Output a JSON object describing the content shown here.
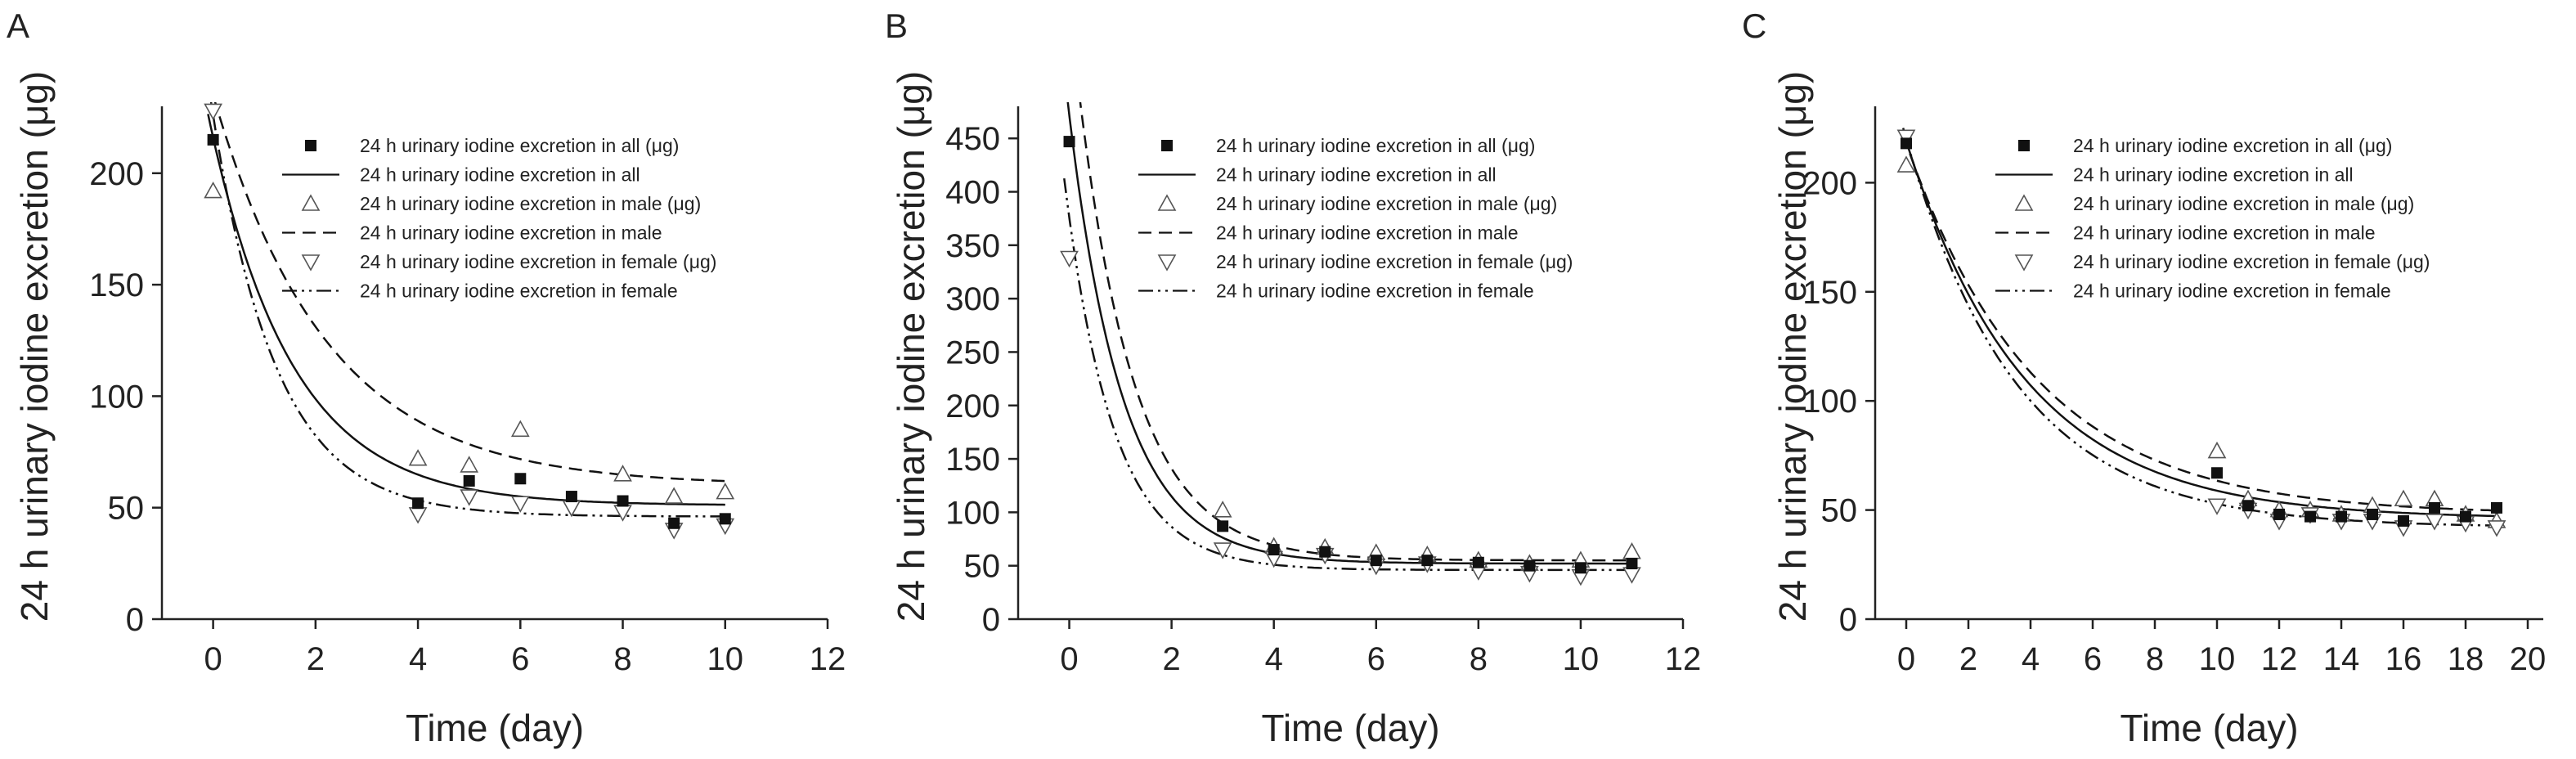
{
  "chart_data": [
    {
      "panel": "A",
      "type": "scatter",
      "xlabel": "Time (day)",
      "ylabel": "24 h urinary iodine excretion (μg)",
      "xlim": [
        -1,
        12
      ],
      "ylim": [
        0,
        230
      ],
      "xticks": [
        0,
        2,
        4,
        6,
        8,
        10,
        12
      ],
      "yticks": [
        0,
        50,
        100,
        150,
        200
      ],
      "legend_position": "top-right",
      "series": [
        {
          "name": "24 h urinary iodine excretion in all (μg)",
          "kind": "points",
          "marker": "square",
          "x": [
            0,
            4,
            5,
            6,
            7,
            8,
            9,
            10
          ],
          "y": [
            215,
            52,
            62,
            63,
            55,
            53,
            43,
            45
          ]
        },
        {
          "name": "24 h urinary iodine excretion in all",
          "kind": "curve",
          "dash": "solid",
          "fit": {
            "a": 165,
            "b": 0.62,
            "c": 51
          }
        },
        {
          "name": "24 h urinary iodine excretion in male (μg)",
          "kind": "points",
          "marker": "triangle-up",
          "x": [
            0,
            4,
            5,
            6,
            8,
            9,
            10
          ],
          "y": [
            192,
            72,
            69,
            85,
            65,
            55,
            57
          ]
        },
        {
          "name": "24 h urinary iodine excretion in male",
          "kind": "curve",
          "dash": "dashed",
          "fit": {
            "a": 175,
            "b": 0.45,
            "c": 60
          }
        },
        {
          "name": "24 h urinary iodine excretion in female (μg)",
          "kind": "points",
          "marker": "triangle-down",
          "x": [
            0,
            4,
            5,
            6,
            7,
            8,
            9,
            10
          ],
          "y": [
            228,
            47,
            55,
            52,
            50,
            48,
            40,
            42
          ]
        },
        {
          "name": "24 h urinary iodine excretion in female",
          "kind": "curve",
          "dash": "dashdotdot",
          "fit": {
            "a": 180,
            "b": 0.8,
            "c": 46
          }
        }
      ]
    },
    {
      "panel": "B",
      "type": "scatter",
      "xlabel": "Time (day)",
      "ylabel": "24 h urinary iodine excretion (μg)",
      "xlim": [
        -1,
        12
      ],
      "ylim": [
        0,
        480
      ],
      "xticks": [
        0,
        2,
        4,
        6,
        8,
        10,
        12
      ],
      "yticks": [
        0,
        50,
        100,
        150,
        200,
        250,
        300,
        350,
        400,
        450
      ],
      "legend_position": "top-right",
      "series": [
        {
          "name": "24 h urinary iodine excretion in all (μg)",
          "kind": "points",
          "marker": "square",
          "x": [
            0,
            3,
            4,
            5,
            6,
            7,
            8,
            9,
            10,
            11
          ],
          "y": [
            447,
            87,
            65,
            63,
            55,
            55,
            53,
            50,
            48,
            52
          ]
        },
        {
          "name": "24 h urinary iodine excretion in all",
          "kind": "curve",
          "dash": "solid",
          "fit": {
            "a": 420,
            "b": 0.95,
            "c": 52
          }
        },
        {
          "name": "24 h urinary iodine excretion in male (μg)",
          "kind": "points",
          "marker": "triangle-up",
          "x": [
            3,
            4,
            5,
            6,
            7,
            8,
            9,
            10,
            11
          ],
          "y": [
            102,
            68,
            67,
            62,
            60,
            55,
            52,
            55,
            63
          ]
        },
        {
          "name": "24 h urinary iodine excretion in male",
          "kind": "curve",
          "dash": "dashed",
          "fit": {
            "a": 520,
            "b": 0.9,
            "c": 55
          }
        },
        {
          "name": "24 h urinary iodine excretion in female (μg)",
          "kind": "points",
          "marker": "triangle-down",
          "x": [
            0,
            3,
            4,
            5,
            6,
            7,
            8,
            9,
            10,
            11
          ],
          "y": [
            338,
            65,
            57,
            60,
            50,
            52,
            45,
            43,
            40,
            42
          ]
        },
        {
          "name": "24 h urinary iodine excretion in female",
          "kind": "curve",
          "dash": "dashdotdot",
          "fit": {
            "a": 330,
            "b": 1.05,
            "c": 46
          }
        }
      ]
    },
    {
      "panel": "C",
      "type": "scatter",
      "xlabel": "Time (day)",
      "ylabel": "24 h urinary iodine excretion (μg)",
      "xlim": [
        -1,
        20.5
      ],
      "ylim": [
        0,
        235
      ],
      "xticks": [
        0,
        2,
        4,
        6,
        8,
        10,
        12,
        14,
        16,
        18,
        20
      ],
      "yticks": [
        0,
        50,
        100,
        150,
        200
      ],
      "legend_position": "top-right",
      "series": [
        {
          "name": "24 h urinary iodine excretion in all (μg)",
          "kind": "points",
          "marker": "square",
          "x": [
            0,
            10,
            11,
            12,
            13,
            14,
            15,
            16,
            17,
            18,
            19
          ],
          "y": [
            218,
            67,
            52,
            48,
            47,
            47,
            48,
            45,
            51,
            47,
            51
          ]
        },
        {
          "name": "24 h urinary iodine excretion in all",
          "kind": "curve",
          "dash": "solid",
          "fit": {
            "a": 173,
            "b": 0.26,
            "c": 46
          }
        },
        {
          "name": "24 h urinary iodine excretion in male (μg)",
          "kind": "points",
          "marker": "triangle-up",
          "x": [
            0,
            10,
            11,
            12,
            13,
            14,
            15,
            16,
            17,
            18,
            19
          ],
          "y": [
            208,
            77,
            55,
            50,
            50,
            48,
            52,
            55,
            55,
            48,
            45
          ]
        },
        {
          "name": "24 h urinary iodine excretion in male",
          "kind": "curve",
          "dash": "dashed",
          "fit": {
            "a": 170,
            "b": 0.24,
            "c": 48
          }
        },
        {
          "name": "24 h urinary iodine excretion in female (μg)",
          "kind": "points",
          "marker": "triangle-down",
          "x": [
            0,
            10,
            11,
            12,
            13,
            14,
            15,
            16,
            17,
            18,
            19
          ],
          "y": [
            221,
            52,
            50,
            45,
            48,
            45,
            45,
            42,
            45,
            44,
            42
          ]
        },
        {
          "name": "24 h urinary iodine excretion in female",
          "kind": "curve",
          "dash": "dashdotdot",
          "fit": {
            "a": 178,
            "b": 0.28,
            "c": 42
          }
        }
      ]
    }
  ]
}
